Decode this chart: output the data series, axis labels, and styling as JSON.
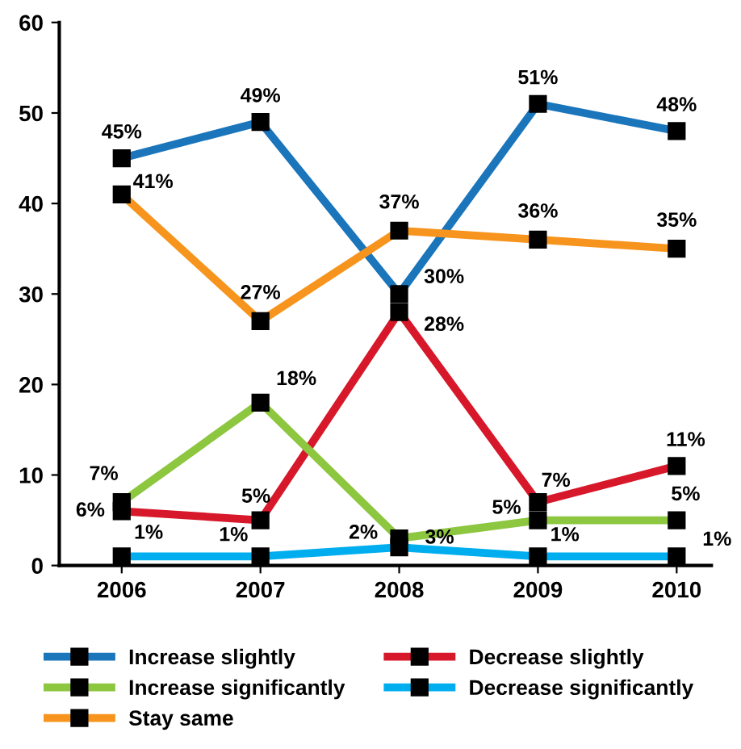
{
  "chart_data": {
    "type": "line",
    "categories": [
      "2006",
      "2007",
      "2008",
      "2009",
      "2010"
    ],
    "ylim": [
      0,
      60
    ],
    "yticks": [
      0,
      10,
      20,
      30,
      40,
      50,
      60
    ],
    "grid": false,
    "legend": "bottom",
    "marker": "square",
    "line_style": "solid",
    "series": [
      {
        "name": "Increase slightly",
        "color": "#1a75bb",
        "values": [
          45,
          49,
          30,
          51,
          48
        ],
        "value_labels": [
          "45%",
          "49%",
          "30%",
          "51%",
          "48%"
        ]
      },
      {
        "name": "Decrease slightly",
        "color": "#d7182a",
        "values": [
          6,
          5,
          28,
          7,
          11
        ],
        "value_labels": [
          "6%",
          "5%",
          "28%",
          "7%",
          "11%"
        ]
      },
      {
        "name": "Increase significantly",
        "color": "#8dc63f",
        "values": [
          7,
          18,
          3,
          5,
          5
        ],
        "value_labels": [
          "7%",
          "18%",
          "3%",
          "5%",
          "5%"
        ]
      },
      {
        "name": "Decrease significantly",
        "color": "#00aeef",
        "values": [
          1,
          1,
          2,
          1,
          1
        ],
        "value_labels": [
          "1%",
          "1%",
          "2%",
          "1%",
          "1%"
        ]
      },
      {
        "name": "Stay same",
        "color": "#f7941d",
        "values": [
          41,
          27,
          37,
          36,
          35
        ],
        "value_labels": [
          "41%",
          "27%",
          "37%",
          "36%",
          "35%"
        ]
      }
    ]
  }
}
